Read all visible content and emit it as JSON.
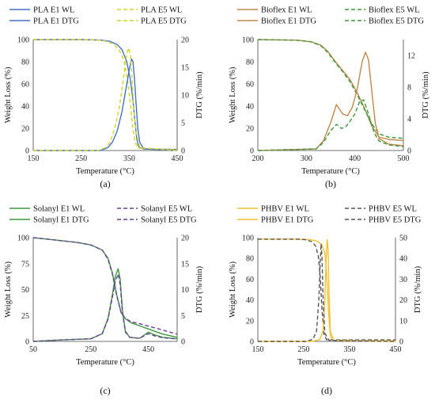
{
  "figure_title": "",
  "chart_data": [
    {
      "panel_label": "(a)",
      "type": "line",
      "xlabel": "Temperature (°C)",
      "ylabel": "Weight Loss (%)",
      "y2label": "DTG (%/min)",
      "xlim": [
        150,
        450
      ],
      "ylim": [
        0,
        100
      ],
      "y2lim": [
        0,
        20
      ],
      "xticks": [
        150,
        250,
        350,
        450
      ],
      "yticks": [
        0,
        20,
        40,
        60,
        80,
        100
      ],
      "y2ticks": [
        0,
        5,
        10,
        15,
        20
      ],
      "xticklabels": [
        "150",
        "250",
        "350",
        "450"
      ],
      "yticklabels": [
        "0",
        "20",
        "40",
        "60",
        "80",
        "100"
      ],
      "y2ticklabels": [
        "0",
        "5",
        "10",
        "15",
        "20"
      ],
      "legend_placement": "top",
      "grid": false,
      "series": [
        {
          "name": "PLA E1 WL",
          "axis": "left",
          "color": "#4472C4",
          "dash": "solid",
          "x": [
            150,
            250,
            290,
            310,
            325,
            335,
            345,
            352,
            358,
            362,
            366,
            370,
            380,
            400,
            450
          ],
          "y": [
            100,
            100,
            99.6,
            98.5,
            95.5,
            91,
            80,
            65,
            45,
            26,
            10,
            3,
            1.5,
            1.2,
            1
          ]
        },
        {
          "name": "PLA E5 WL",
          "axis": "left",
          "color": "#D4D422",
          "dash": "dashed",
          "x": [
            150,
            250,
            290,
            305,
            320,
            330,
            340,
            347,
            352,
            357,
            362,
            368,
            380,
            400,
            450
          ],
          "y": [
            100,
            100,
            99.5,
            98.2,
            95,
            90,
            80,
            62,
            44,
            22,
            8,
            2.5,
            1.5,
            1.2,
            1
          ]
        },
        {
          "name": "PLA E1 DTG",
          "axis": "right",
          "color": "#4472C4",
          "dash": "solid",
          "x": [
            150,
            290,
            305,
            315,
            325,
            335,
            343,
            350,
            355,
            358,
            361,
            364,
            368,
            372,
            380,
            450
          ],
          "y": [
            0,
            0,
            0.5,
            1.5,
            3.5,
            7,
            11,
            14.5,
            16.5,
            16,
            13,
            9,
            4,
            1.5,
            0.3,
            0
          ]
        },
        {
          "name": "PLA E5 DTG",
          "axis": "right",
          "color": "#D4D422",
          "dash": "dashed",
          "x": [
            150,
            285,
            300,
            310,
            320,
            330,
            338,
            344,
            349,
            353,
            356,
            360,
            365,
            372,
            450
          ],
          "y": [
            0,
            0,
            0.5,
            1.5,
            4,
            8,
            13,
            17,
            18.5,
            17,
            13,
            7,
            3,
            0.5,
            0
          ]
        }
      ]
    },
    {
      "panel_label": "(b)",
      "type": "line",
      "xlabel": "Temperature (°C)",
      "ylabel": "Weight Loss (%)",
      "y2label": "DTG (%/min)",
      "xlim": [
        200,
        500
      ],
      "ylim": [
        0,
        100
      ],
      "y2lim": [
        0,
        14
      ],
      "xticks": [
        200,
        300,
        400,
        500
      ],
      "yticks": [
        0,
        20,
        40,
        60,
        80,
        100
      ],
      "y2ticks": [
        0,
        4,
        8,
        12
      ],
      "xticklabels": [
        "200",
        "300",
        "400",
        "500"
      ],
      "yticklabels": [
        "0",
        "20",
        "40",
        "60",
        "80",
        "100"
      ],
      "y2ticklabels": [
        "0",
        "4",
        "8",
        "12"
      ],
      "legend_placement": "top",
      "grid": false,
      "series": [
        {
          "name": "Bioflex E1 WL",
          "axis": "left",
          "color": "#C0884A",
          "dash": "solid",
          "x": [
            200,
            280,
            310,
            330,
            345,
            360,
            375,
            390,
            405,
            420,
            435,
            450,
            470,
            500
          ],
          "y": [
            100,
            99.5,
            98,
            95,
            89,
            80,
            72,
            64,
            52,
            38,
            22,
            12,
            10,
            9
          ]
        },
        {
          "name": "Bioflex E5 WL",
          "axis": "left",
          "color": "#3A9A3A",
          "dash": "dashed",
          "x": [
            200,
            280,
            310,
            330,
            345,
            360,
            375,
            390,
            405,
            420,
            435,
            450,
            470,
            500
          ],
          "y": [
            100,
            99.5,
            98,
            94.5,
            88,
            79,
            71,
            62,
            50,
            37,
            24,
            15,
            12,
            11
          ]
        },
        {
          "name": "Bioflex E1 DTG",
          "axis": "right",
          "color": "#C0884A",
          "dash": "solid",
          "x": [
            200,
            320,
            335,
            350,
            362,
            375,
            385,
            395,
            405,
            415,
            422,
            428,
            435,
            442,
            450,
            470,
            500
          ],
          "y": [
            0,
            0.2,
            1.2,
            3.5,
            5.8,
            4.6,
            4.4,
            5.5,
            7.8,
            11.2,
            12.4,
            11.5,
            7.5,
            3.5,
            1.5,
            0.8,
            0.6
          ]
        },
        {
          "name": "Bioflex E5 DTG",
          "axis": "right",
          "color": "#3A9A3A",
          "dash": "dashed",
          "x": [
            200,
            320,
            335,
            350,
            362,
            372,
            380,
            390,
            400,
            410,
            418,
            425,
            432,
            440,
            450,
            470,
            500
          ],
          "y": [
            0,
            0.2,
            1,
            2.5,
            3.3,
            2.8,
            2.9,
            3.7,
            4.6,
            6.2,
            6.4,
            5.2,
            3.8,
            2.2,
            1.2,
            0.7,
            0.5
          ]
        }
      ]
    },
    {
      "panel_label": "(c)",
      "type": "line",
      "xlabel": "Temperature (°C)",
      "ylabel": "Weight Loss (%)",
      "y2label": "DTG (%/min)",
      "xlim": [
        50,
        550
      ],
      "ylim": [
        0,
        100
      ],
      "y2lim": [
        0,
        20
      ],
      "xticks": [
        50,
        250,
        450
      ],
      "yticks": [
        0,
        25,
        50,
        75,
        100
      ],
      "y2ticks": [
        0,
        5,
        10,
        15,
        20
      ],
      "xticklabels": [
        "50",
        "250",
        "450"
      ],
      "yticklabels": [
        "0",
        "25",
        "50",
        "75",
        "100"
      ],
      "y2ticklabels": [
        "0",
        "5",
        "10",
        "15",
        "20"
      ],
      "legend_placement": "top",
      "grid": false,
      "series": [
        {
          "name": "Solanyl E1 WL",
          "axis": "left",
          "color": "#3A9A3A",
          "dash": "solid",
          "x": [
            50,
            100,
            150,
            200,
            250,
            290,
            310,
            325,
            340,
            355,
            370,
            390,
            420,
            460,
            500,
            550
          ],
          "y": [
            100,
            98.5,
            97,
            95.5,
            93,
            88,
            80,
            66,
            45,
            28,
            22,
            18,
            15,
            11,
            7,
            4
          ]
        },
        {
          "name": "Solanyl E5 WL",
          "axis": "left",
          "color": "#6A3D9A",
          "dash": "dashed",
          "x": [
            50,
            100,
            150,
            200,
            250,
            290,
            310,
            325,
            340,
            355,
            370,
            390,
            420,
            460,
            500,
            550
          ],
          "y": [
            100,
            98.5,
            97,
            95.5,
            93,
            88,
            79,
            65,
            44,
            28,
            22,
            19,
            17,
            14,
            11,
            7
          ]
        },
        {
          "name": "Solanyl E1 DTG",
          "axis": "right",
          "color": "#3A9A3A",
          "dash": "solid",
          "x": [
            50,
            150,
            250,
            290,
            310,
            325,
            335,
            345,
            352,
            360,
            370,
            385,
            420,
            450,
            470,
            500,
            550
          ],
          "y": [
            0,
            0.3,
            0.5,
            1.5,
            4.5,
            9,
            12.5,
            14,
            12,
            6,
            2,
            0.8,
            0.6,
            1.8,
            1.3,
            0.8,
            0.5
          ]
        },
        {
          "name": "Solanyl E5 DTG",
          "axis": "right",
          "color": "#6A3D9A",
          "dash": "dashed",
          "x": [
            50,
            150,
            250,
            290,
            310,
            325,
            335,
            345,
            352,
            360,
            370,
            385,
            420,
            450,
            470,
            500,
            550
          ],
          "y": [
            0,
            0.3,
            0.5,
            1.5,
            4.3,
            8.5,
            11.5,
            13,
            11,
            5.5,
            1.8,
            0.8,
            0.6,
            1.5,
            1.1,
            0.7,
            0.5
          ]
        }
      ]
    },
    {
      "panel_label": "(d)",
      "type": "line",
      "xlabel": "Temperature (°C)",
      "ylabel": "Weight Loss (%)",
      "y2label": "DTG (%/min)",
      "xlim": [
        150,
        450
      ],
      "ylim": [
        0,
        100
      ],
      "y2lim": [
        0,
        50
      ],
      "xticks": [
        150,
        250,
        350,
        450
      ],
      "yticks": [
        0,
        20,
        40,
        60,
        80,
        100
      ],
      "y2ticks": [
        0,
        10,
        20,
        30,
        40,
        50
      ],
      "xticklabels": [
        "150",
        "250",
        "350",
        "450"
      ],
      "yticklabels": [
        "0",
        "20",
        "40",
        "60",
        "80",
        "100"
      ],
      "y2ticklabels": [
        "0",
        "10",
        "20",
        "30",
        "40",
        "50"
      ],
      "legend_placement": "top",
      "grid": false,
      "series": [
        {
          "name": "PHBV E1 WL",
          "axis": "left",
          "color": "#F2C230",
          "dash": "solid",
          "x": [
            150,
            240,
            265,
            280,
            290,
            296,
            300,
            304,
            308,
            315,
            350,
            450
          ],
          "y": [
            98.5,
            98.5,
            98,
            96.5,
            93,
            85,
            65,
            30,
            5,
            1,
            0.5,
            0.5
          ]
        },
        {
          "name": "PHBV E5 WL",
          "axis": "left",
          "color": "#555555",
          "dash": "dashed",
          "x": [
            150,
            240,
            255,
            268,
            276,
            282,
            286,
            290,
            294,
            300,
            350,
            450
          ],
          "y": [
            98.5,
            98.5,
            98,
            96,
            92,
            82,
            62,
            30,
            7,
            1.5,
            1.5,
            1.5
          ]
        },
        {
          "name": "PHBV E1 DTG",
          "axis": "right",
          "color": "#F2C230",
          "dash": "solid",
          "x": [
            150,
            270,
            285,
            292,
            296,
            299,
            301,
            303,
            305,
            308,
            315,
            450
          ],
          "y": [
            0,
            0,
            1,
            5,
            20,
            40,
            49,
            45,
            25,
            5,
            0.5,
            0
          ]
        },
        {
          "name": "PHBV E5 DTG",
          "axis": "right",
          "color": "#555555",
          "dash": "dashed",
          "x": [
            150,
            255,
            270,
            278,
            283,
            286,
            288,
            290,
            292,
            296,
            305,
            450
          ],
          "y": [
            0,
            0,
            1,
            5,
            20,
            38,
            47,
            40,
            22,
            4,
            0.5,
            0
          ]
        }
      ]
    }
  ]
}
